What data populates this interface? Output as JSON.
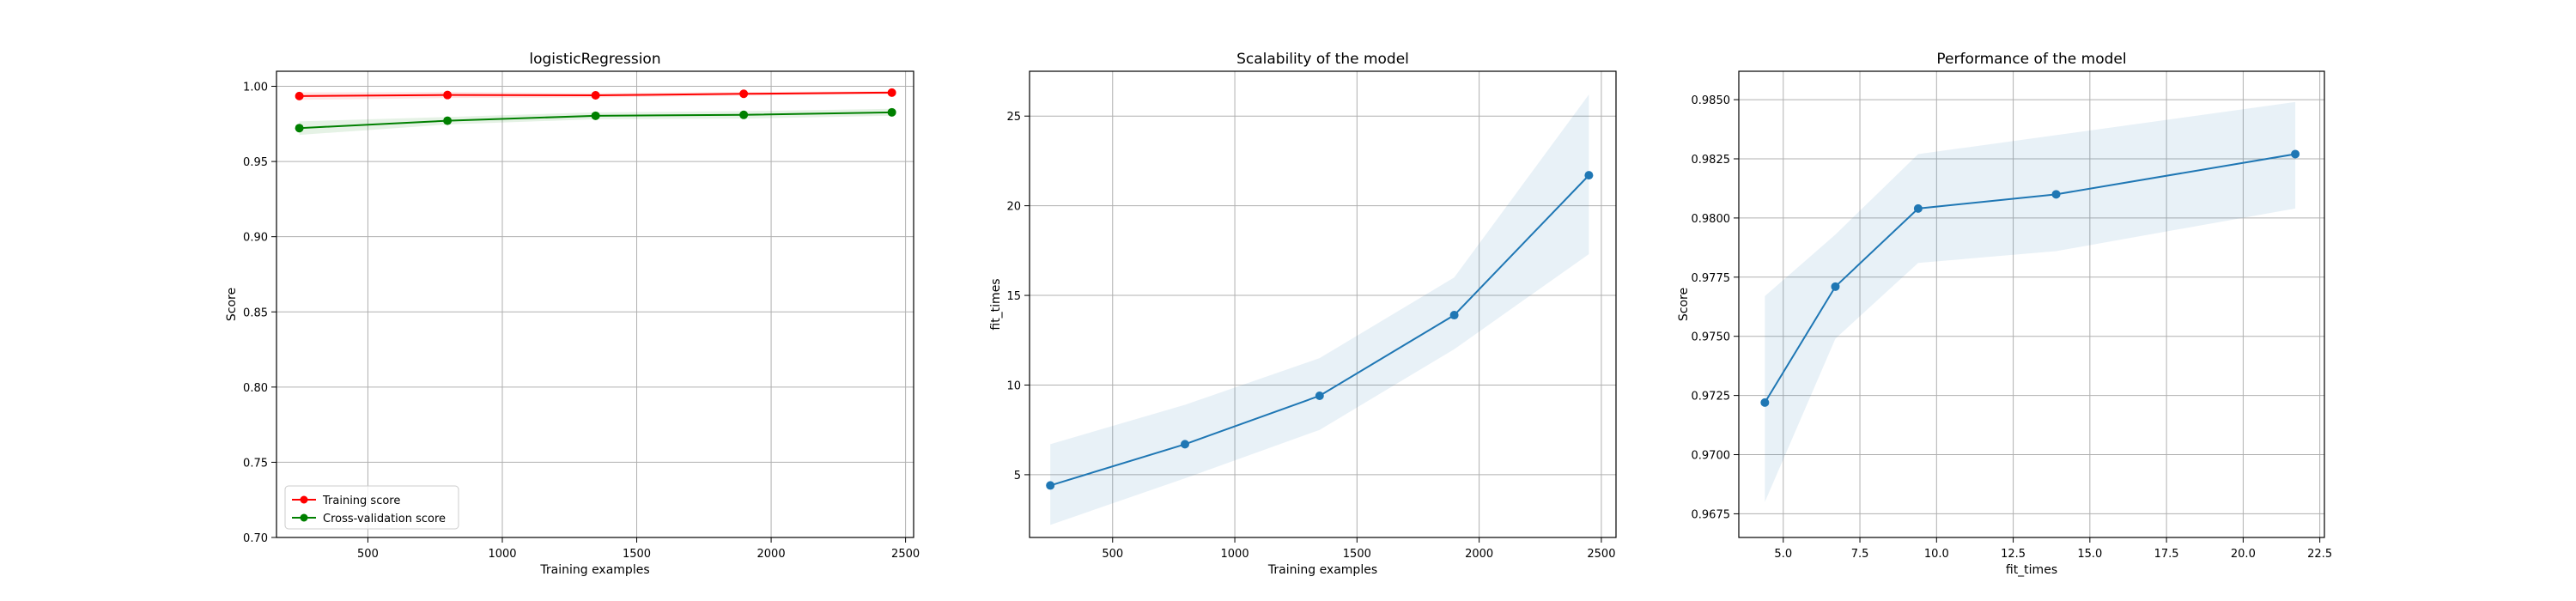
{
  "chart_data": [
    {
      "type": "line",
      "title": "logisticRegression",
      "xlabel": "Training examples",
      "ylabel": "Score",
      "xlim": [
        160,
        2530
      ],
      "ylim": [
        0.7,
        1.01
      ],
      "xticks": [
        500,
        1000,
        1500,
        2000,
        2500
      ],
      "yticks": [
        0.7,
        0.75,
        0.8,
        0.85,
        0.9,
        0.95,
        1.0
      ],
      "ytick_labels": [
        "0.70",
        "0.75",
        "0.80",
        "0.85",
        "0.90",
        "0.95",
        "1.00"
      ],
      "grid": true,
      "legend": "lower left",
      "x": [
        245,
        796,
        1347,
        1898,
        2449
      ],
      "series": [
        {
          "name": "Training score",
          "color": "#ff0000",
          "values": [
            0.9935,
            0.9942,
            0.994,
            0.995,
            0.9958
          ],
          "band": [
            0.0025,
            0.002,
            0.0015,
            0.0012,
            0.001
          ]
        },
        {
          "name": "Cross-validation score",
          "color": "#008000",
          "values": [
            0.9722,
            0.9771,
            0.9804,
            0.981,
            0.9827
          ],
          "band": [
            0.0045,
            0.0025,
            0.0023,
            0.0025,
            0.0023
          ]
        }
      ]
    },
    {
      "type": "line",
      "title": "Scalability of the model",
      "xlabel": "Training examples",
      "ylabel": "fit_times",
      "xlim": [
        160,
        2560
      ],
      "ylim": [
        1.5,
        27.5
      ],
      "xticks": [
        500,
        1000,
        1500,
        2000,
        2500
      ],
      "yticks": [
        5,
        10,
        15,
        20,
        25
      ],
      "ytick_labels": [
        "5",
        "10",
        "15",
        "20",
        "25"
      ],
      "grid": true,
      "x": [
        245,
        796,
        1347,
        1898,
        2449
      ],
      "series": [
        {
          "name": "fit_times",
          "color": "#1f77b4",
          "values": [
            4.4,
            6.7,
            9.4,
            13.9,
            21.7
          ],
          "lower": [
            2.2,
            4.8,
            7.5,
            12.0,
            17.3
          ],
          "upper": [
            6.7,
            8.9,
            11.5,
            16.0,
            26.2
          ]
        }
      ]
    },
    {
      "type": "line",
      "title": "Performance of the model",
      "xlabel": "fit_times",
      "ylabel": "Score",
      "xlim": [
        3.55,
        22.65
      ],
      "ylim": [
        0.9665,
        0.9862
      ],
      "xticks": [
        5.0,
        7.5,
        10.0,
        12.5,
        15.0,
        17.5,
        20.0,
        22.5
      ],
      "xtick_labels": [
        "5.0",
        "7.5",
        "10.0",
        "12.5",
        "15.0",
        "17.5",
        "20.0",
        "22.5"
      ],
      "yticks": [
        0.9675,
        0.97,
        0.9725,
        0.975,
        0.9775,
        0.98,
        0.9825,
        0.985
      ],
      "ytick_labels": [
        "0.9675",
        "0.9700",
        "0.9725",
        "0.9750",
        "0.9775",
        "0.9800",
        "0.9825",
        "0.9850"
      ],
      "grid": true,
      "x": [
        4.4,
        6.7,
        9.4,
        13.9,
        21.7
      ],
      "series": [
        {
          "name": "Score",
          "color": "#1f77b4",
          "values": [
            0.9722,
            0.9771,
            0.9804,
            0.981,
            0.9827
          ],
          "lower": [
            0.968,
            0.9749,
            0.9781,
            0.9786,
            0.9804
          ],
          "upper": [
            0.9767,
            0.9793,
            0.9827,
            0.9835,
            0.9849
          ]
        }
      ]
    }
  ]
}
